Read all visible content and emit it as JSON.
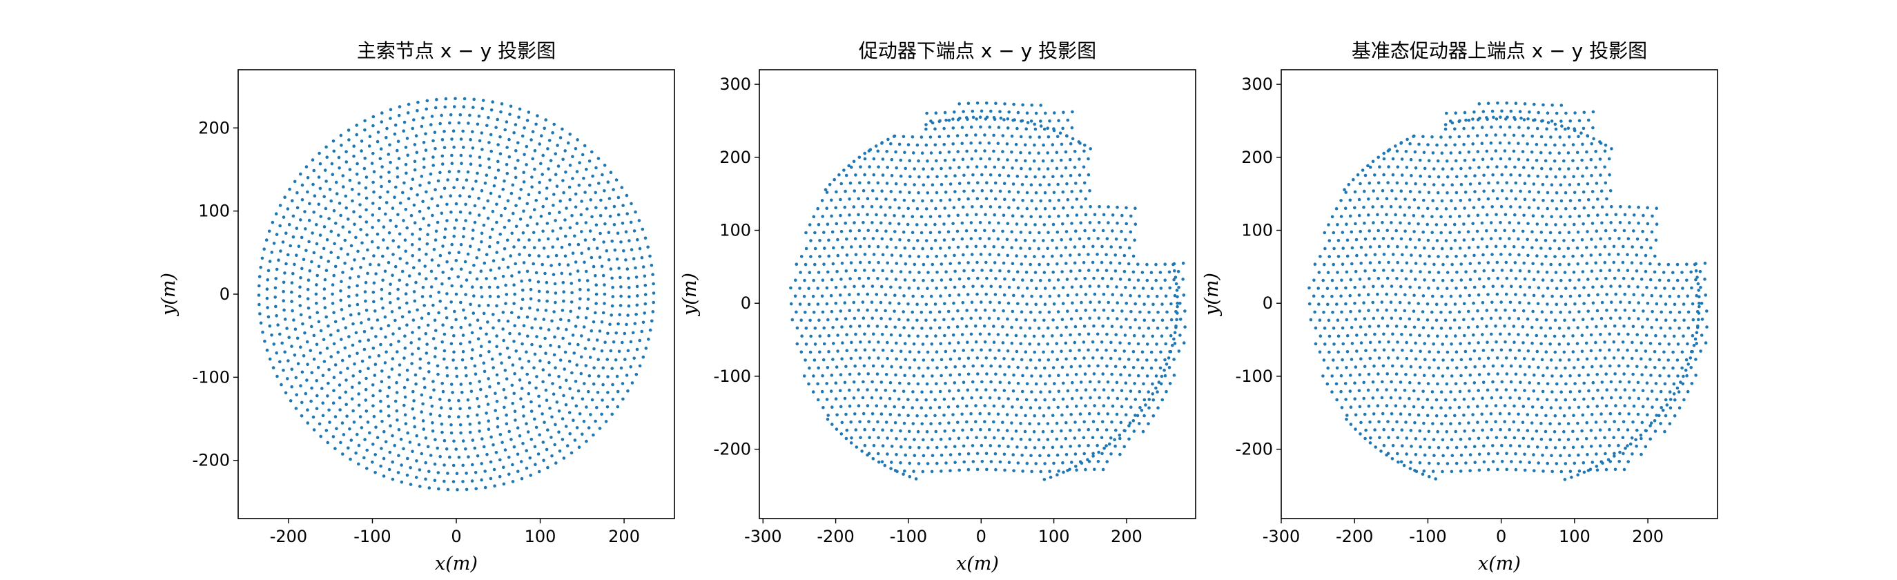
{
  "figure": {
    "marker_color": "#1f77b4"
  },
  "chart_data": [
    {
      "type": "scatter",
      "title": "主索节点 x − y 投影图",
      "xlabel": "x(m)",
      "ylabel": "y(m)",
      "xlim": [
        -260,
        260
      ],
      "ylim": [
        -270,
        270
      ],
      "xticks": [
        -200,
        -100,
        0,
        100,
        200
      ],
      "yticks": [
        -200,
        -100,
        0,
        100,
        200
      ],
      "xtick_labels": [
        "-200",
        "-100",
        "0",
        "100",
        "200"
      ],
      "ytick_labels": [
        "-200",
        "-100",
        "0",
        "100",
        "200"
      ],
      "grid": false,
      "pattern": {
        "shape": "circle",
        "radius": 245,
        "spacing": 11,
        "description_values": "points spread uniformly over a disc of radius ~245 m centred at the origin"
      }
    },
    {
      "type": "scatter",
      "title": "促动器下端点 x − y 投影图",
      "xlabel": "x(m)",
      "ylabel": "y(m)",
      "xlim": [
        -305,
        295
      ],
      "ylim": [
        -295,
        320
      ],
      "xticks": [
        -300,
        -200,
        -100,
        0,
        100,
        200
      ],
      "yticks": [
        -200,
        -100,
        0,
        100,
        200,
        300
      ],
      "xtick_labels": [
        "-300",
        "-200",
        "-100",
        "0",
        "100",
        "200"
      ],
      "ytick_labels": [
        "-200",
        "-100",
        "0",
        "100",
        "200",
        "300"
      ],
      "grid": false,
      "pattern": {
        "shape": "distorted-disc",
        "x_range": [
          -285,
          280
        ],
        "y_range": [
          -255,
          285
        ],
        "spacing": 12
      }
    },
    {
      "type": "scatter",
      "title": "基准态促动器上端点 x − y 投影图",
      "xlabel": "x(m)",
      "ylabel": "y(m)",
      "xlim": [
        -300,
        295
      ],
      "ylim": [
        -295,
        320
      ],
      "xticks": [
        -300,
        -200,
        -100,
        0,
        100,
        200
      ],
      "yticks": [
        -200,
        -100,
        0,
        100,
        200,
        300
      ],
      "xtick_labels": [
        "-300",
        "-200",
        "-100",
        "0",
        "100",
        "200"
      ],
      "ytick_labels": [
        "-200",
        "-100",
        "0",
        "100",
        "200",
        "300"
      ],
      "grid": false,
      "pattern": {
        "shape": "distorted-disc",
        "x_range": [
          -285,
          280
        ],
        "y_range": [
          -255,
          285
        ],
        "spacing": 12
      }
    }
  ]
}
